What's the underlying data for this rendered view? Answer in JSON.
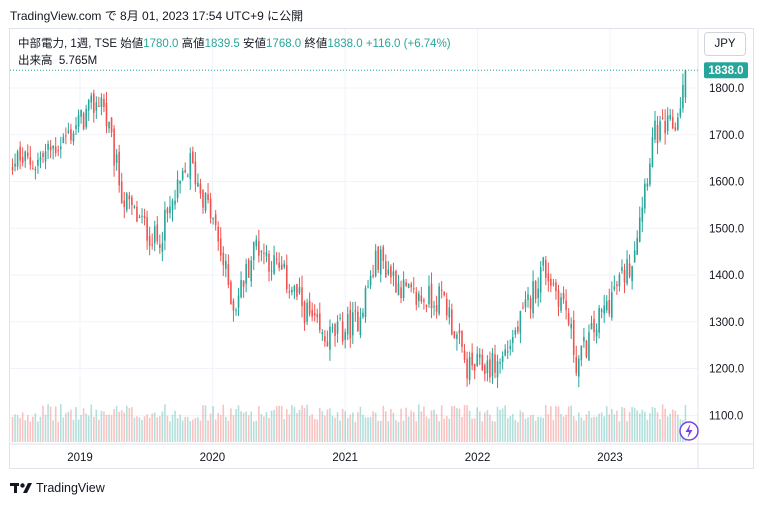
{
  "header": {
    "caption": "TradingView.com で 8月 01, 2023 17:54 UTC+9 に公開"
  },
  "legend": {
    "symbol": "中部電力, 1週, TSE",
    "open_label": "始値",
    "open": "1780.0",
    "high_label": "高値",
    "high": "1839.5",
    "low_label": "安値",
    "low": "1768.0",
    "close_label": "終値",
    "close": "1838.0",
    "change": "+116.0 (+6.74%)",
    "volume_label": "出来高",
    "volume": "5.765M"
  },
  "currency_button": "JPY",
  "last_price_tag": "1838.0",
  "footer": {
    "brand": "TradingView"
  },
  "colors": {
    "up": "#26a69a",
    "down": "#ef5350",
    "grid": "#f0f3fa",
    "text": "#131722",
    "brand_purple": "#7b3fe4"
  },
  "icons": {
    "flash": "lightning-icon",
    "logo": "tradingview-logo-icon"
  },
  "chart_data": {
    "type": "candlestick",
    "title": "中部電力, 1週, TSE",
    "y_ticks": [
      "1800.0",
      "1700.0",
      "1600.0",
      "1500.0",
      "1400.0",
      "1300.0",
      "1200.0",
      "1100.0"
    ],
    "x_ticks": [
      "2019",
      "2020",
      "2021",
      "2022",
      "2023"
    ],
    "ylim": [
      1050,
      1850
    ],
    "grid": true,
    "close_anchors": [
      {
        "date": "2018-06",
        "close": 1650
      },
      {
        "date": "2018-09",
        "close": 1640
      },
      {
        "date": "2018-12",
        "close": 1700
      },
      {
        "date": "2019-03",
        "close": 1780
      },
      {
        "date": "2019-05",
        "close": 1560
      },
      {
        "date": "2019-08",
        "close": 1470
      },
      {
        "date": "2019-11",
        "close": 1640
      },
      {
        "date": "2020-01",
        "close": 1520
      },
      {
        "date": "2020-03",
        "close": 1330
      },
      {
        "date": "2020-05",
        "close": 1470
      },
      {
        "date": "2020-08",
        "close": 1380
      },
      {
        "date": "2020-11",
        "close": 1260
      },
      {
        "date": "2021-02",
        "close": 1300
      },
      {
        "date": "2021-04",
        "close": 1440
      },
      {
        "date": "2021-07",
        "close": 1350
      },
      {
        "date": "2021-10",
        "close": 1350
      },
      {
        "date": "2021-12",
        "close": 1200
      },
      {
        "date": "2022-03",
        "close": 1210
      },
      {
        "date": "2022-05",
        "close": 1300
      },
      {
        "date": "2022-07",
        "close": 1420
      },
      {
        "date": "2022-09",
        "close": 1330
      },
      {
        "date": "2022-10",
        "close": 1210
      },
      {
        "date": "2023-01",
        "close": 1350
      },
      {
        "date": "2023-03",
        "close": 1430
      },
      {
        "date": "2023-05",
        "close": 1700
      },
      {
        "date": "2023-07",
        "close": 1720
      },
      {
        "date": "2023-08",
        "close": 1838
      }
    ],
    "last": {
      "open": 1780.0,
      "high": 1839.5,
      "low": 1768.0,
      "close": 1838.0
    }
  }
}
